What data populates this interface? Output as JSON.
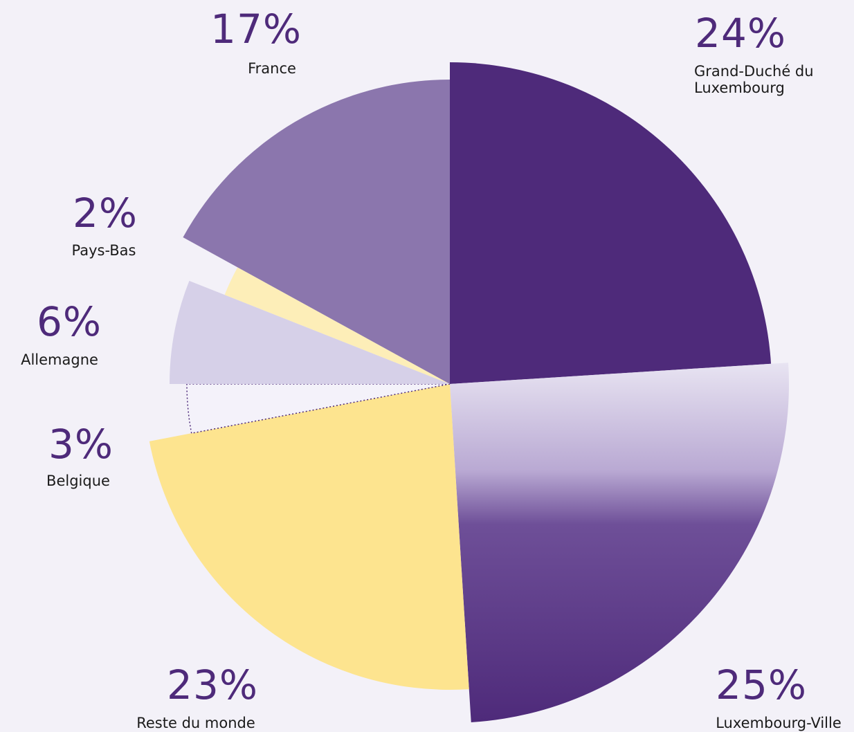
{
  "chart_data": {
    "type": "pie",
    "categories": [
      "Grand-Duché du Luxembourg",
      "Luxembourg-Ville",
      "Reste du monde",
      "Belgique",
      "Allemagne",
      "Pays-Bas",
      "France"
    ],
    "values": [
      24,
      25,
      23,
      3,
      6,
      2,
      17
    ],
    "value_labels": [
      "24%",
      "25%",
      "23%",
      "3%",
      "6%",
      "2%",
      "17%"
    ],
    "colors": [
      "#4e2a7a",
      "#5f3d8c",
      "#fde48f",
      "#f4f2fa",
      "#d6d0e8",
      "#fdeeb8",
      "#8b76ad"
    ]
  }
}
